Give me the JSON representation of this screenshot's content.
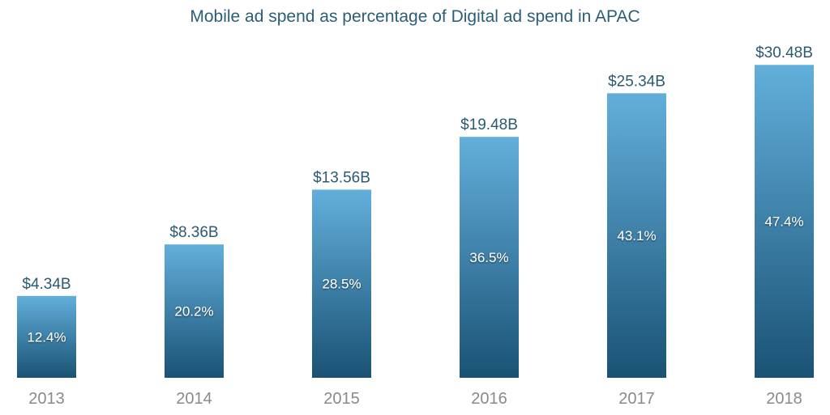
{
  "chart_data": {
    "type": "bar",
    "title": "Mobile ad spend as percentage of Digital ad spend in APAC",
    "categories": [
      "2013",
      "2014",
      "2015",
      "2016",
      "2017",
      "2018"
    ],
    "values": [
      12.4,
      20.2,
      28.5,
      36.5,
      43.1,
      47.4
    ],
    "value_labels": [
      "12.4%",
      "20.2%",
      "28.5%",
      "36.5%",
      "43.1%",
      "47.4%"
    ],
    "top_labels": [
      "$4.34B",
      "$8.36B",
      "$13.56B",
      "$19.48B",
      "$25.34B",
      "$30.48B"
    ],
    "top_values_billion_usd": [
      4.34,
      8.36,
      13.56,
      19.48,
      25.34,
      30.48
    ],
    "xlabel": "",
    "ylabel": "",
    "grid": false,
    "colors": {
      "bar_top": "#62afdc",
      "bar_bottom": "#1a5274",
      "title": "#2b5e78",
      "label": "#2b5a72",
      "year": "#8a8a8a"
    }
  }
}
